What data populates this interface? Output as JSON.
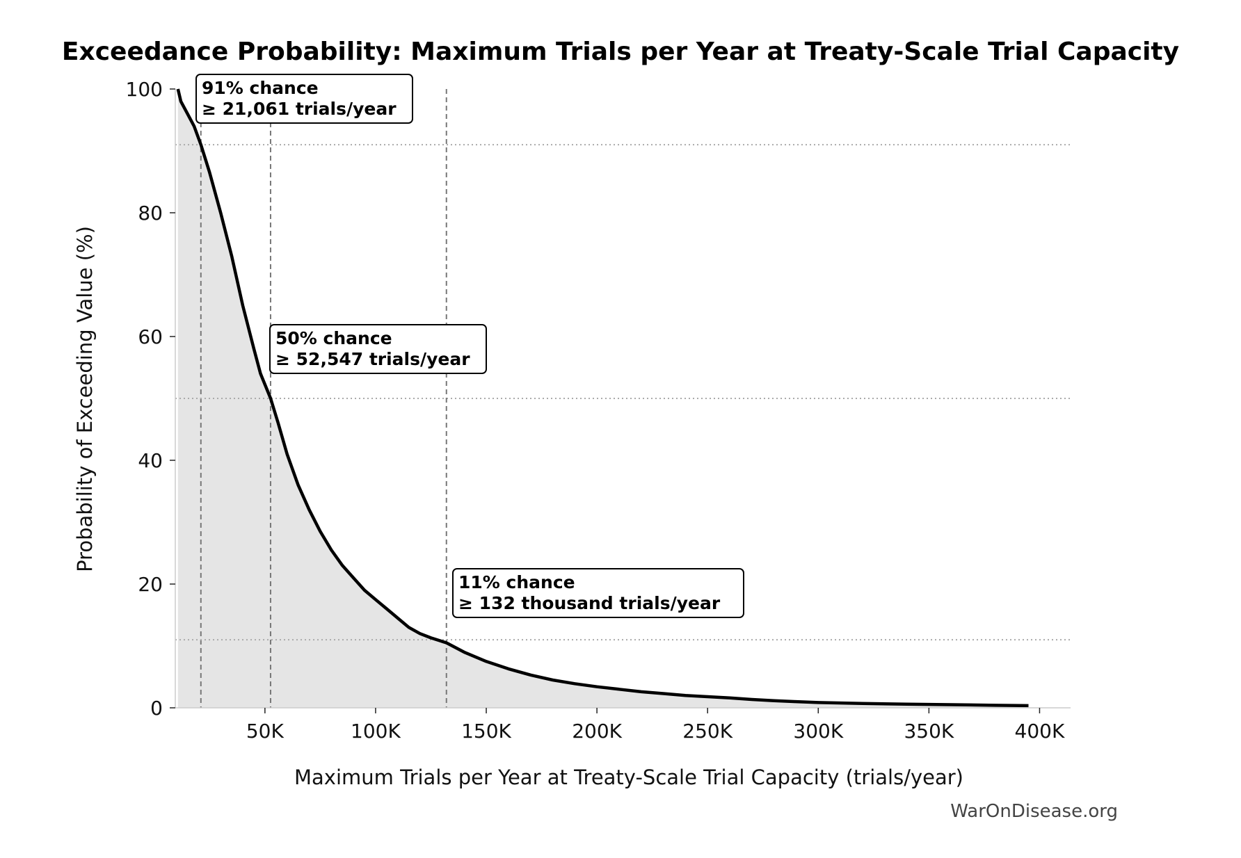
{
  "chart_data": {
    "type": "area",
    "title": "Exceedance Probability: Maximum Trials per Year at Treaty-Scale Trial Capacity",
    "xlabel": "Maximum Trials per Year at Treaty-Scale Trial Capacity (trials/year)",
    "ylabel": "Probability of Exceeding Value (%)",
    "xlim": [
      9500,
      414000
    ],
    "ylim": [
      0,
      100
    ],
    "x_ticks": [
      50000,
      100000,
      150000,
      200000,
      250000,
      300000,
      350000,
      400000
    ],
    "x_tick_labels": [
      "50K",
      "100K",
      "150K",
      "200K",
      "250K",
      "300K",
      "350K",
      "400K"
    ],
    "y_ticks": [
      0,
      20,
      40,
      60,
      80,
      100
    ],
    "y_tick_labels": [
      "0",
      "20",
      "40",
      "60",
      "80",
      "100"
    ],
    "grid": false,
    "fill_color": "#e5e5e5",
    "line_color": "#000000",
    "series": [
      {
        "x": [
          10700,
          12000,
          15000,
          18000,
          21061,
          25000,
          30000,
          35000,
          40000,
          45000,
          48000,
          52547,
          56000,
          60000,
          65000,
          70000,
          75000,
          80000,
          85000,
          90000,
          95000,
          100000,
          105000,
          110000,
          115000,
          120000,
          125000,
          132000,
          140000,
          150000,
          160000,
          170000,
          180000,
          190000,
          200000,
          210000,
          220000,
          230000,
          240000,
          250000,
          260000,
          270000,
          280000,
          290000,
          300000,
          320000,
          340000,
          360000,
          380000,
          395000
        ],
        "y": [
          100,
          98,
          96,
          94,
          91,
          86.5,
          80,
          73,
          65,
          58,
          54,
          50,
          46,
          41,
          36,
          32,
          28.5,
          25.5,
          23,
          21,
          19,
          17.5,
          16,
          14.5,
          13,
          12,
          11.3,
          10.5,
          9,
          7.5,
          6.3,
          5.3,
          4.5,
          3.9,
          3.4,
          3.0,
          2.6,
          2.3,
          2.0,
          1.8,
          1.6,
          1.35,
          1.15,
          1.0,
          0.85,
          0.7,
          0.6,
          0.5,
          0.4,
          0.35
        ]
      }
    ],
    "thresholds": [
      {
        "probability": 91,
        "value": 21061
      },
      {
        "probability": 50,
        "value": 52547
      },
      {
        "probability": 11,
        "value": 132000
      }
    ],
    "annotations": [
      {
        "line1": "91% chance",
        "line2": "≥ 21,061 trials/year"
      },
      {
        "line1": "50% chance",
        "line2": "≥ 52,547 trials/year"
      },
      {
        "line1": "11% chance",
        "line2": "≥ 132 thousand trials/year"
      }
    ]
  },
  "watermark": "WarOnDisease.org"
}
